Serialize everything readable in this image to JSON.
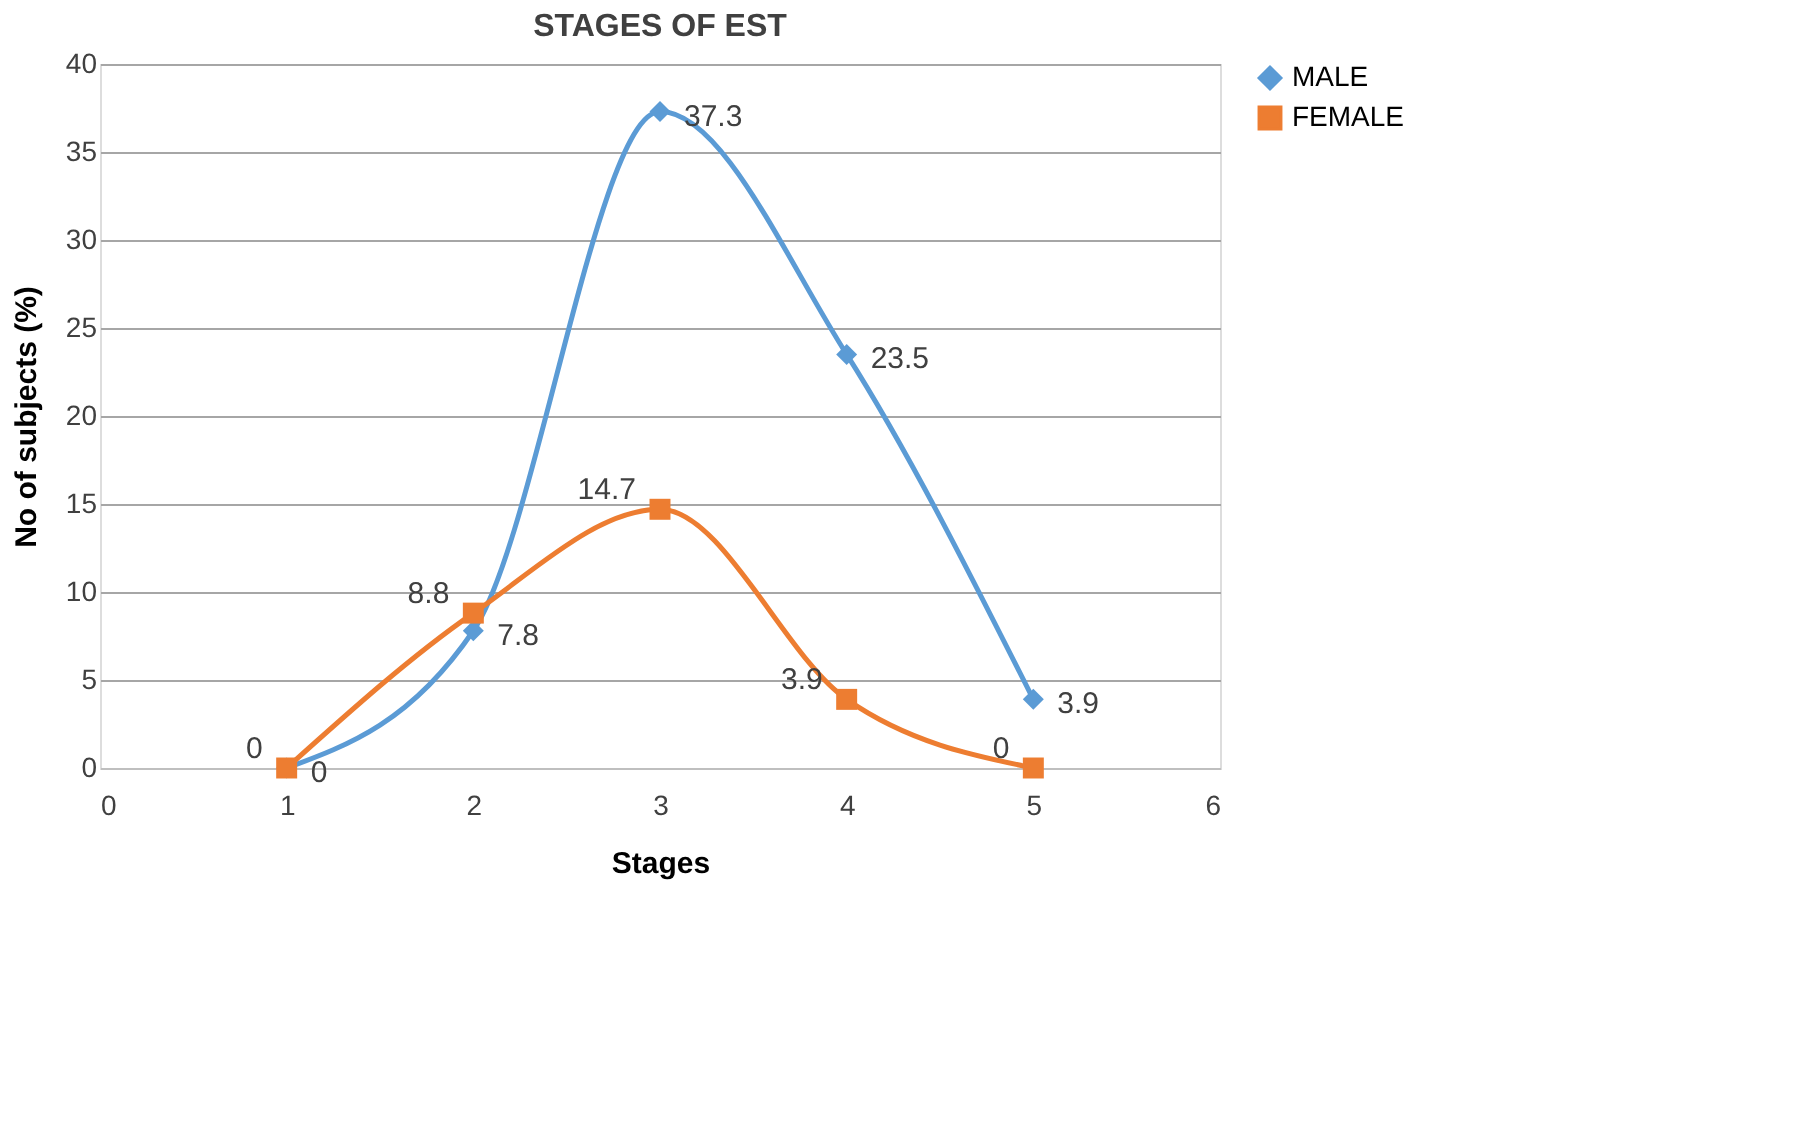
{
  "chart_data": {
    "type": "line",
    "title": "STAGES OF EST",
    "xlabel": "Stages",
    "ylabel": "No of subjects (%)",
    "x": [
      1,
      2,
      3,
      4,
      5
    ],
    "series": [
      {
        "name": "MALE",
        "color": "#5b9bd5",
        "marker": "diamond",
        "values": [
          0,
          7.8,
          37.3,
          23.5,
          3.9
        ]
      },
      {
        "name": "FEMALE",
        "color": "#ed7d31",
        "marker": "square",
        "values": [
          0,
          8.8,
          14.7,
          3.9,
          0
        ]
      }
    ],
    "xlim": [
      0,
      6
    ],
    "xticks": [
      0,
      1,
      2,
      3,
      4,
      5,
      6
    ],
    "ylim": [
      0,
      40
    ],
    "yticks": [
      0,
      5,
      10,
      15,
      20,
      25,
      30,
      35,
      40
    ],
    "grid": "y",
    "legend": "right",
    "data_labels": true
  }
}
